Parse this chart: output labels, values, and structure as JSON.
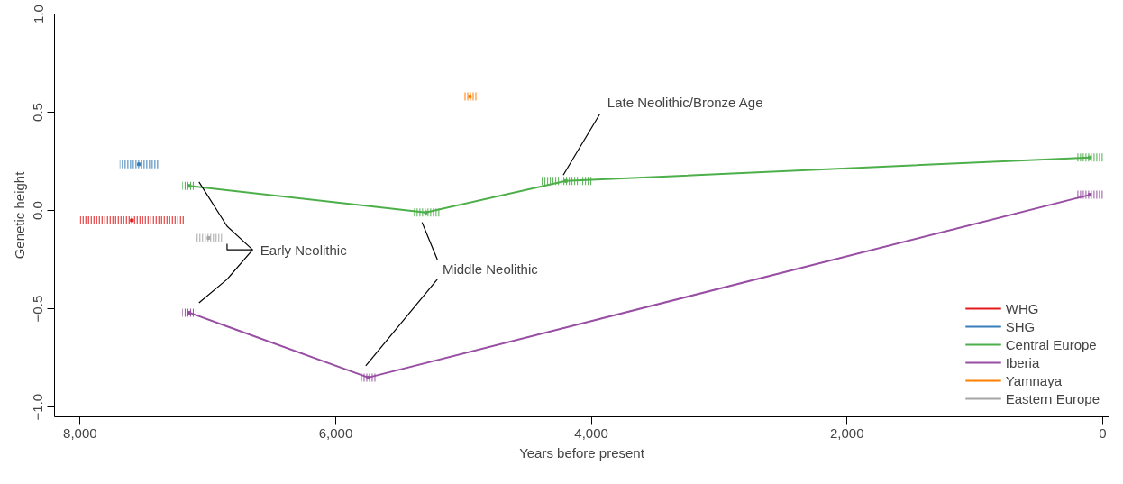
{
  "chart_data": {
    "type": "line",
    "xlabel": "Years before present",
    "ylabel": "Genetic height",
    "xlim": [
      8200,
      -50
    ],
    "ylim": [
      -1.05,
      1.0
    ],
    "xticks": [
      {
        "value": 8000,
        "label": "8,000"
      },
      {
        "value": 6000,
        "label": "6,000"
      },
      {
        "value": 4000,
        "label": "4,000"
      },
      {
        "value": 2000,
        "label": "2,000"
      },
      0
    ],
    "yticks": [
      {
        "value": -1.0,
        "label": "−1.0"
      },
      {
        "value": -0.5,
        "label": "−0.5"
      },
      {
        "value": 0.0,
        "label": "0.0"
      },
      0.5,
      {
        "value": 1.0,
        "label": "1.0"
      }
    ],
    "grid": false,
    "legend": "bottom right",
    "marker": "square",
    "series": [
      {
        "name": "WHG",
        "type": "scatter",
        "color": "#e41a1c",
        "x": [
          7595
        ],
        "values": [
          -0.05
        ],
        "xerrors": [
          [
            7190,
            8000
          ]
        ]
      },
      {
        "name": "SHG",
        "type": "scatter",
        "color": "#377eb8",
        "x": [
          7540
        ],
        "values": [
          0.235
        ],
        "xerrors": [
          [
            7390,
            7690
          ]
        ]
      },
      {
        "name": "Central Europe",
        "color": "#4daf4a",
        "x": [
          7145,
          5295,
          4200,
          100
        ],
        "values": [
          0.125,
          -0.01,
          0.15,
          0.27
        ],
        "xerrors": [
          [
            7090,
            7200
          ],
          [
            5190,
            5400
          ],
          [
            4000,
            4400
          ],
          [
            0,
            200
          ]
        ]
      },
      {
        "name": "Iberia",
        "color": "#984ea3",
        "x": [
          7145,
          5745,
          100
        ],
        "values": [
          -0.52,
          -0.85,
          0.08
        ],
        "xerrors": [
          [
            7090,
            7200
          ],
          [
            5690,
            5800
          ],
          [
            0,
            200
          ]
        ]
      },
      {
        "name": "Yamnaya",
        "type": "scatter",
        "color": "#ff7f00",
        "x": [
          4950
        ],
        "values": [
          0.58
        ],
        "xerrors": [
          [
            4900,
            5000
          ]
        ]
      },
      {
        "name": "Eastern Europe",
        "type": "scatter",
        "color": "#a6a6a6",
        "x": [
          6995
        ],
        "values": [
          -0.14
        ],
        "xerrors": [
          [
            6890,
            7100
          ]
        ]
      }
    ],
    "annotations": [
      "Early Neolithic",
      "Middle Neolithic",
      {
        "text": "Late Neolithic/Bronze Age",
        "x": 4200,
        "y": 0.15
      }
    ]
  }
}
